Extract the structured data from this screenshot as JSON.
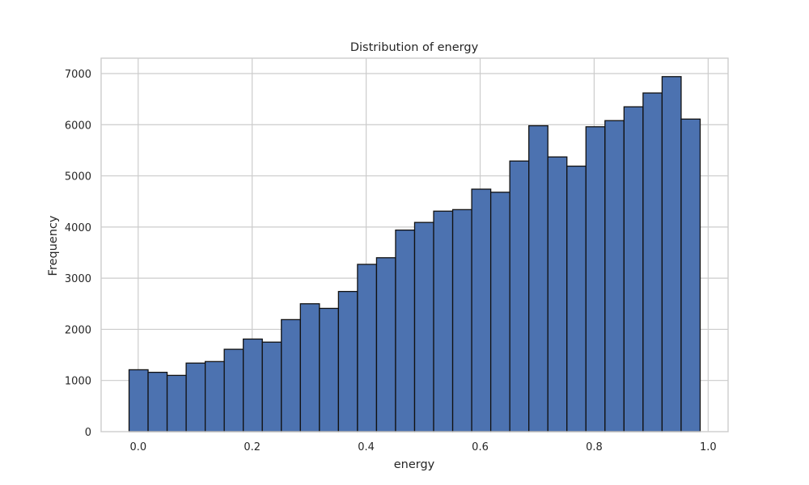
{
  "colors": {
    "bar_fill": "#4c72b0",
    "bar_edge": "#111111",
    "grid": "#cccccc",
    "background": "#ffffff"
  },
  "chart_data": {
    "type": "bar",
    "title": "Distribution of energy",
    "xlabel": "energy",
    "ylabel": "Frequency",
    "xlim": [
      -0.065,
      1.035
    ],
    "ylim": [
      0,
      7300
    ],
    "grid": true,
    "legend": "none",
    "x_ticks": [
      0.0,
      0.2,
      0.4,
      0.6,
      0.8,
      1.0
    ],
    "x_tick_labels": [
      "0.0",
      "0.2",
      "0.4",
      "0.6",
      "0.8",
      "1.0"
    ],
    "y_ticks": [
      0,
      1000,
      2000,
      3000,
      4000,
      5000,
      6000,
      7000
    ],
    "y_tick_labels": [
      "0",
      "1000",
      "2000",
      "3000",
      "4000",
      "5000",
      "6000",
      "7000"
    ],
    "bin_edges": [
      -0.016,
      0.0174,
      0.0508,
      0.0842,
      0.1176,
      0.151,
      0.1844,
      0.2178,
      0.2512,
      0.2846,
      0.318,
      0.3514,
      0.3848,
      0.4182,
      0.4516,
      0.485,
      0.5184,
      0.5518,
      0.5852,
      0.6186,
      0.652,
      0.6854,
      0.7188,
      0.7522,
      0.7856,
      0.819,
      0.8524,
      0.8858,
      0.9192,
      0.9526,
      0.986
    ],
    "values": [
      1210,
      1160,
      1100,
      1340,
      1370,
      1610,
      1810,
      1750,
      2190,
      2500,
      2410,
      2740,
      3270,
      3400,
      3940,
      4090,
      4310,
      4340,
      4740,
      4680,
      5290,
      5980,
      5370,
      5190,
      5960,
      6080,
      6350,
      6620,
      6940,
      6110
    ]
  }
}
